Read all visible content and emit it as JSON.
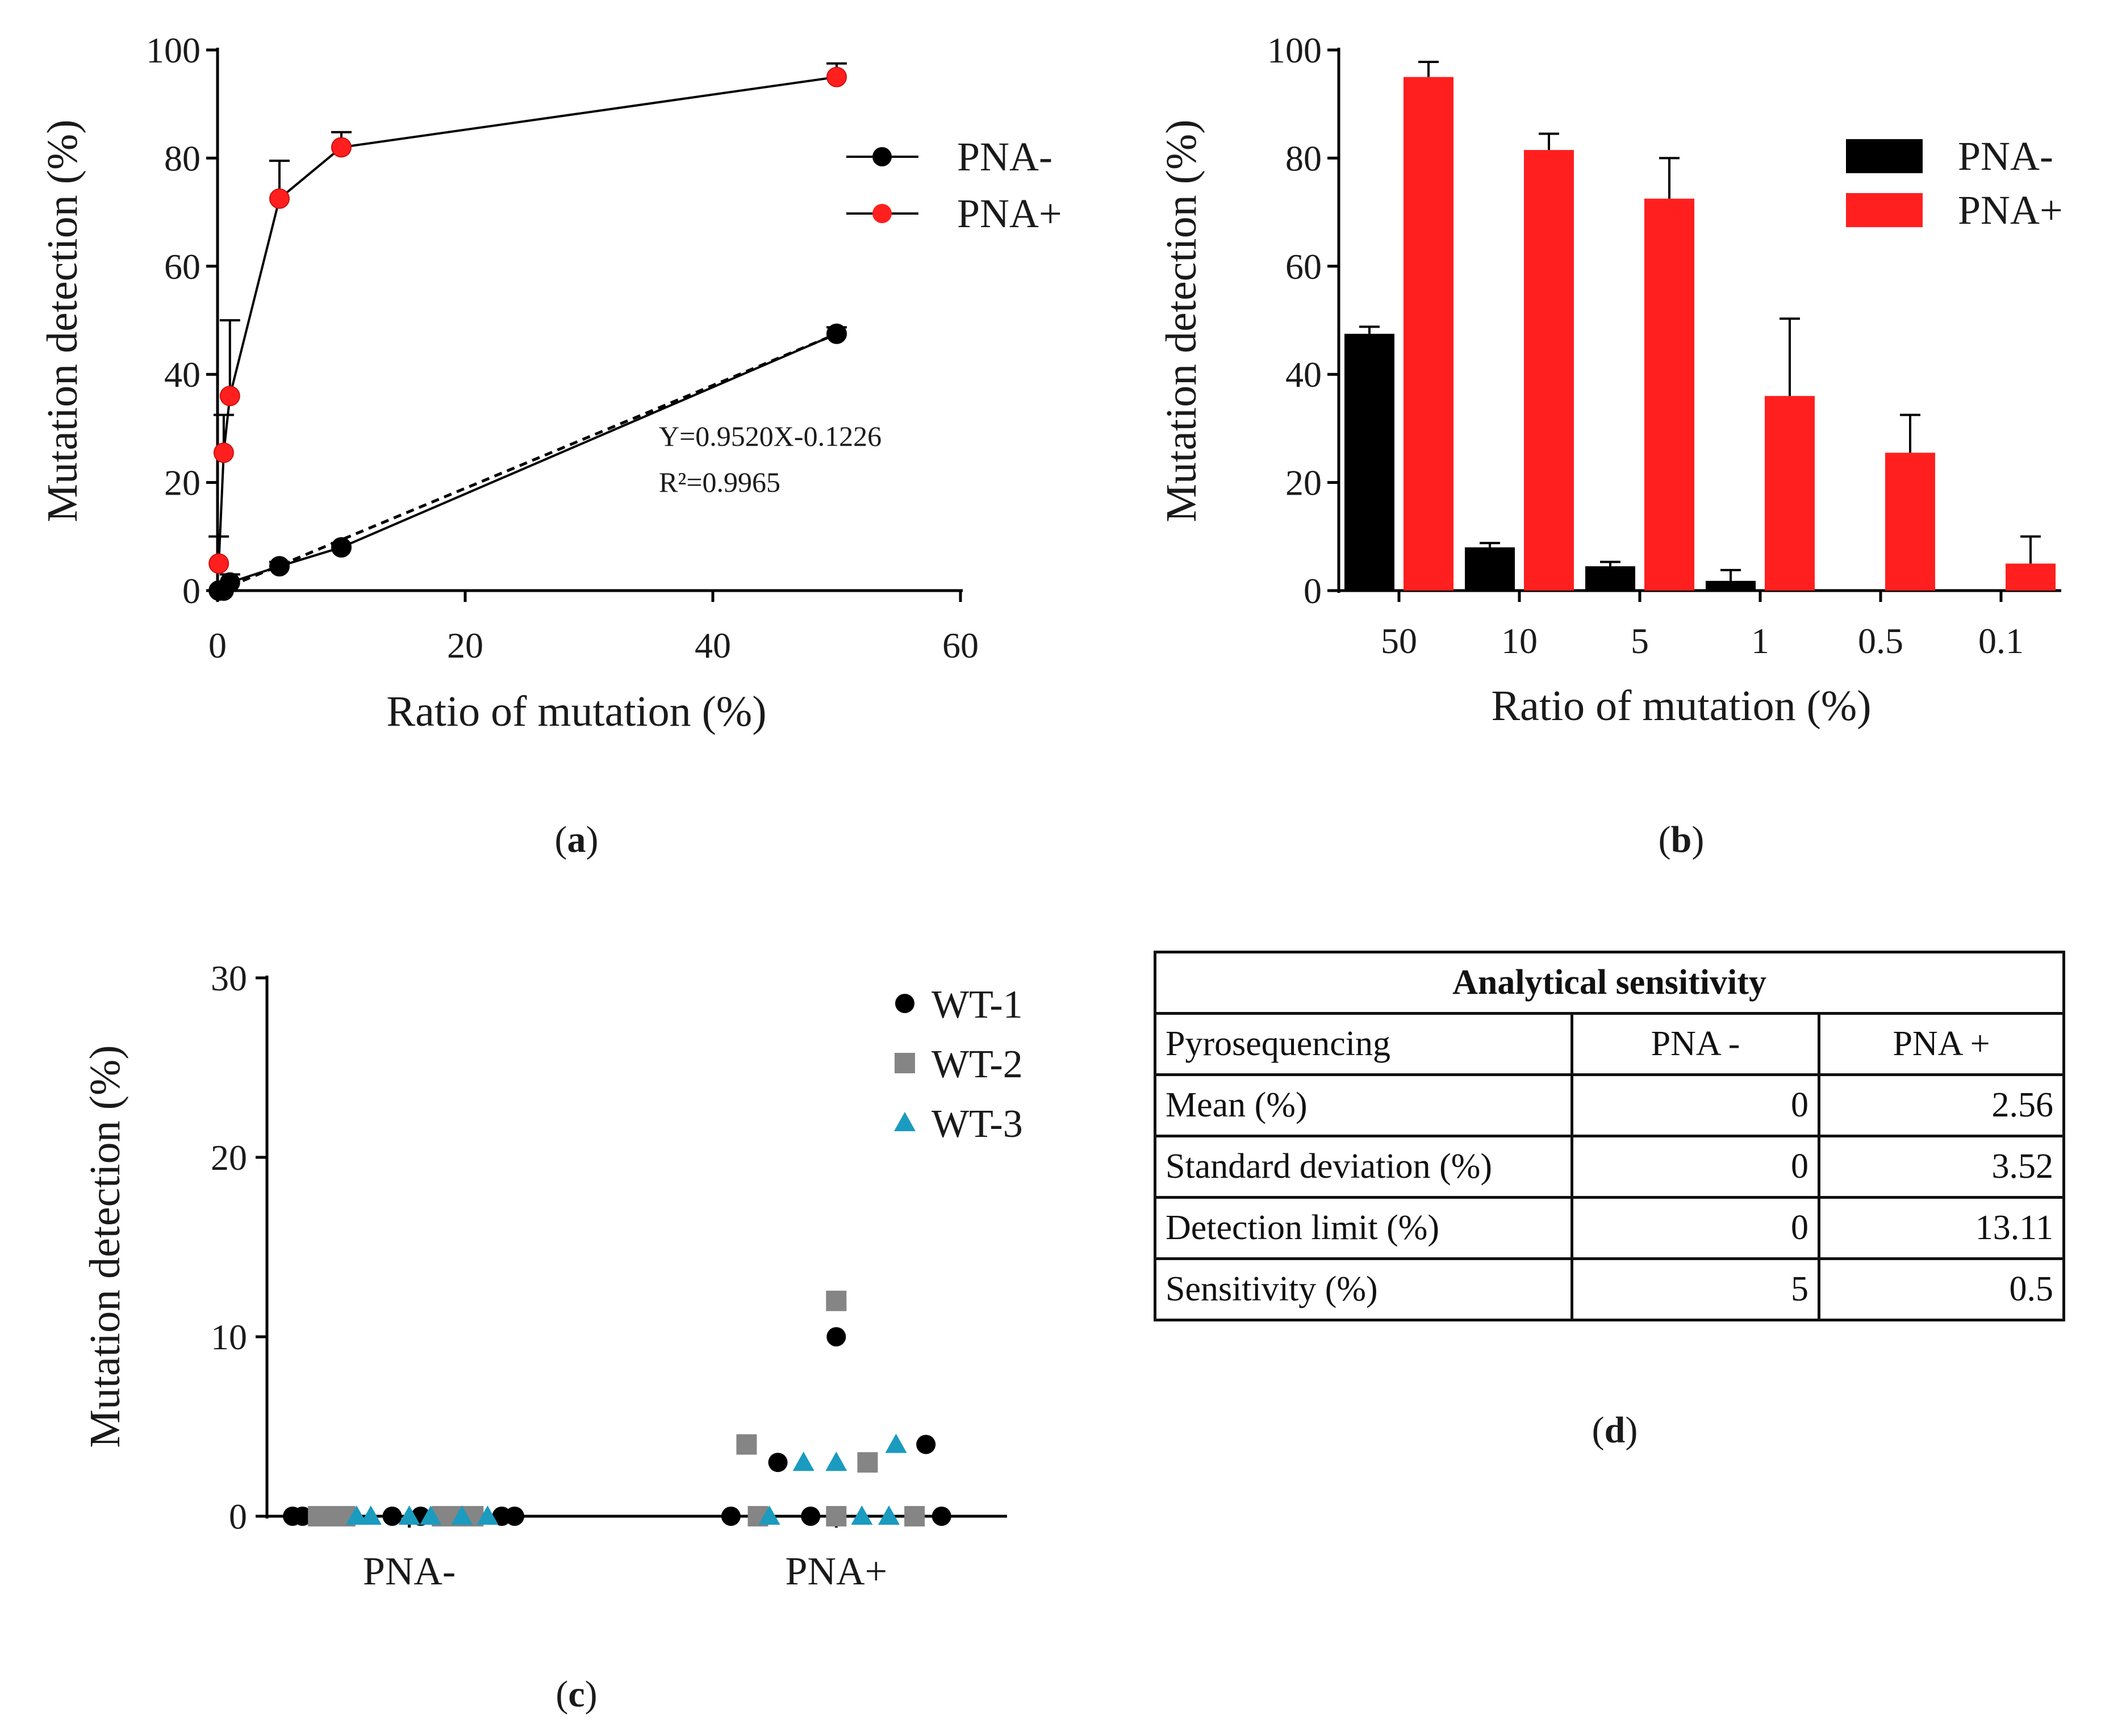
{
  "chart_data": [
    {
      "panel": "a",
      "type": "line",
      "panel_label_letter": "a",
      "xlabel": "Ratio of mutation (%)",
      "ylabel": "Mutation detection (%)",
      "xlim": [
        0,
        60
      ],
      "ylim": [
        0,
        100
      ],
      "xticks": [
        "0",
        "20",
        "40",
        "60"
      ],
      "yticks": [
        "0",
        "20",
        "40",
        "60",
        "80",
        "100"
      ],
      "series": [
        {
          "name": "PNA-",
          "color": "#000000",
          "x": [
            0.1,
            0.5,
            1,
            5,
            10,
            50
          ],
          "y": [
            0,
            0,
            1.5,
            4.5,
            8,
            47.5
          ],
          "err": [
            0,
            0,
            1.5,
            0.8,
            0.8,
            1.2
          ]
        },
        {
          "name": "PNA+",
          "color": "#ff1f1f",
          "x": [
            0.1,
            0.5,
            1,
            5,
            10,
            50
          ],
          "y": [
            5,
            25.5,
            36,
            72.5,
            82,
            95
          ],
          "err": [
            5,
            7,
            14,
            7,
            2.8,
            2.5
          ]
        }
      ],
      "fit_line": {
        "x": [
          0,
          50
        ],
        "y": [
          -0.1226,
          47.4774
        ],
        "style": "dashed"
      },
      "annotation": [
        "Y=0.9520X-0.1226",
        "R²=0.9965"
      ],
      "legend": [
        "PNA-",
        "PNA+"
      ],
      "legend_position": "top-right"
    },
    {
      "panel": "b",
      "type": "bar",
      "panel_label_letter": "b",
      "xlabel": "Ratio of mutation (%)",
      "ylabel": "Mutation detection (%)",
      "ylim": [
        0,
        100
      ],
      "yticks": [
        "0",
        "20",
        "40",
        "60",
        "80",
        "100"
      ],
      "categories": [
        "50",
        "10",
        "5",
        "1",
        "0.5",
        "0.1"
      ],
      "series": [
        {
          "name": "PNA-",
          "color": "#000000",
          "values": [
            47.5,
            8,
            4.5,
            1.8,
            0,
            0
          ],
          "err": [
            1.3,
            0.8,
            0.8,
            2,
            0,
            0
          ]
        },
        {
          "name": "PNA+",
          "color": "#ff1f1f",
          "values": [
            95,
            81.5,
            72.5,
            36,
            25.5,
            5
          ],
          "err": [
            2.8,
            3,
            7.5,
            14.3,
            7,
            5
          ]
        }
      ],
      "legend": [
        "PNA-",
        "PNA+"
      ],
      "legend_position": "top-right"
    },
    {
      "panel": "c",
      "type": "scatter",
      "panel_label_letter": "c",
      "xlabel": "",
      "ylabel": "Mutation detection (%)",
      "ylim": [
        0,
        30
      ],
      "yticks": [
        "0",
        "10",
        "20",
        "30"
      ],
      "categories": [
        "PNA-",
        "PNA+"
      ],
      "series": [
        {
          "name": "WT-1",
          "marker": "circle",
          "color": "#000000",
          "points": [
            {
              "x": 0.18,
              "y": 0
            },
            {
              "x": 0.25,
              "y": 0
            },
            {
              "x": 0.88,
              "y": 0
            },
            {
              "x": 1.08,
              "y": 0
            },
            {
              "x": 1.65,
              "y": 0
            },
            {
              "x": 1.74,
              "y": 0
            },
            {
              "x": 3.26,
              "y": 0
            },
            {
              "x": 3.59,
              "y": 3
            },
            {
              "x": 3.82,
              "y": 0
            },
            {
              "x": 4.0,
              "y": 10
            },
            {
              "x": 4.63,
              "y": 4
            },
            {
              "x": 4.74,
              "y": 0
            }
          ]
        },
        {
          "name": "WT-2",
          "marker": "square",
          "color": "#858585",
          "points": [
            {
              "x": 0.36,
              "y": 0
            },
            {
              "x": 0.45,
              "y": 0
            },
            {
              "x": 0.55,
              "y": 0
            },
            {
              "x": 1.23,
              "y": 0
            },
            {
              "x": 1.32,
              "y": 0
            },
            {
              "x": 1.45,
              "y": 0
            },
            {
              "x": 3.37,
              "y": 4
            },
            {
              "x": 3.45,
              "y": 0
            },
            {
              "x": 4.0,
              "y": 0
            },
            {
              "x": 4.0,
              "y": 12
            },
            {
              "x": 4.22,
              "y": 3
            },
            {
              "x": 4.55,
              "y": 0
            }
          ]
        },
        {
          "name": "WT-3",
          "marker": "triangle",
          "color": "#1a9bbf",
          "points": [
            {
              "x": 0.63,
              "y": 0
            },
            {
              "x": 0.73,
              "y": 0
            },
            {
              "x": 1.0,
              "y": 0
            },
            {
              "x": 1.15,
              "y": 0
            },
            {
              "x": 1.37,
              "y": 0
            },
            {
              "x": 1.55,
              "y": 0
            },
            {
              "x": 3.53,
              "y": 0
            },
            {
              "x": 3.77,
              "y": 3
            },
            {
              "x": 4.0,
              "y": 3
            },
            {
              "x": 4.18,
              "y": 0
            },
            {
              "x": 4.37,
              "y": 0
            },
            {
              "x": 4.42,
              "y": 4
            }
          ]
        }
      ],
      "category_positions": [
        1,
        4
      ],
      "xlim": [
        0,
        5.2
      ],
      "legend": [
        "WT-1",
        "WT-2",
        "WT-3"
      ],
      "legend_position": "top-right"
    },
    {
      "panel": "d",
      "type": "table",
      "panel_label_letter": "d",
      "title": "Analytical sensitivity",
      "columns": [
        "Pyrosequencing",
        "PNA -",
        "PNA +"
      ],
      "rows": [
        [
          "Mean (%)",
          "0",
          "2.56"
        ],
        [
          "Standard deviation (%)",
          "0",
          "3.52"
        ],
        [
          "Detection limit (%)",
          "0",
          "13.11"
        ],
        [
          "Sensitivity (%)",
          "5",
          "0.5"
        ]
      ]
    }
  ]
}
